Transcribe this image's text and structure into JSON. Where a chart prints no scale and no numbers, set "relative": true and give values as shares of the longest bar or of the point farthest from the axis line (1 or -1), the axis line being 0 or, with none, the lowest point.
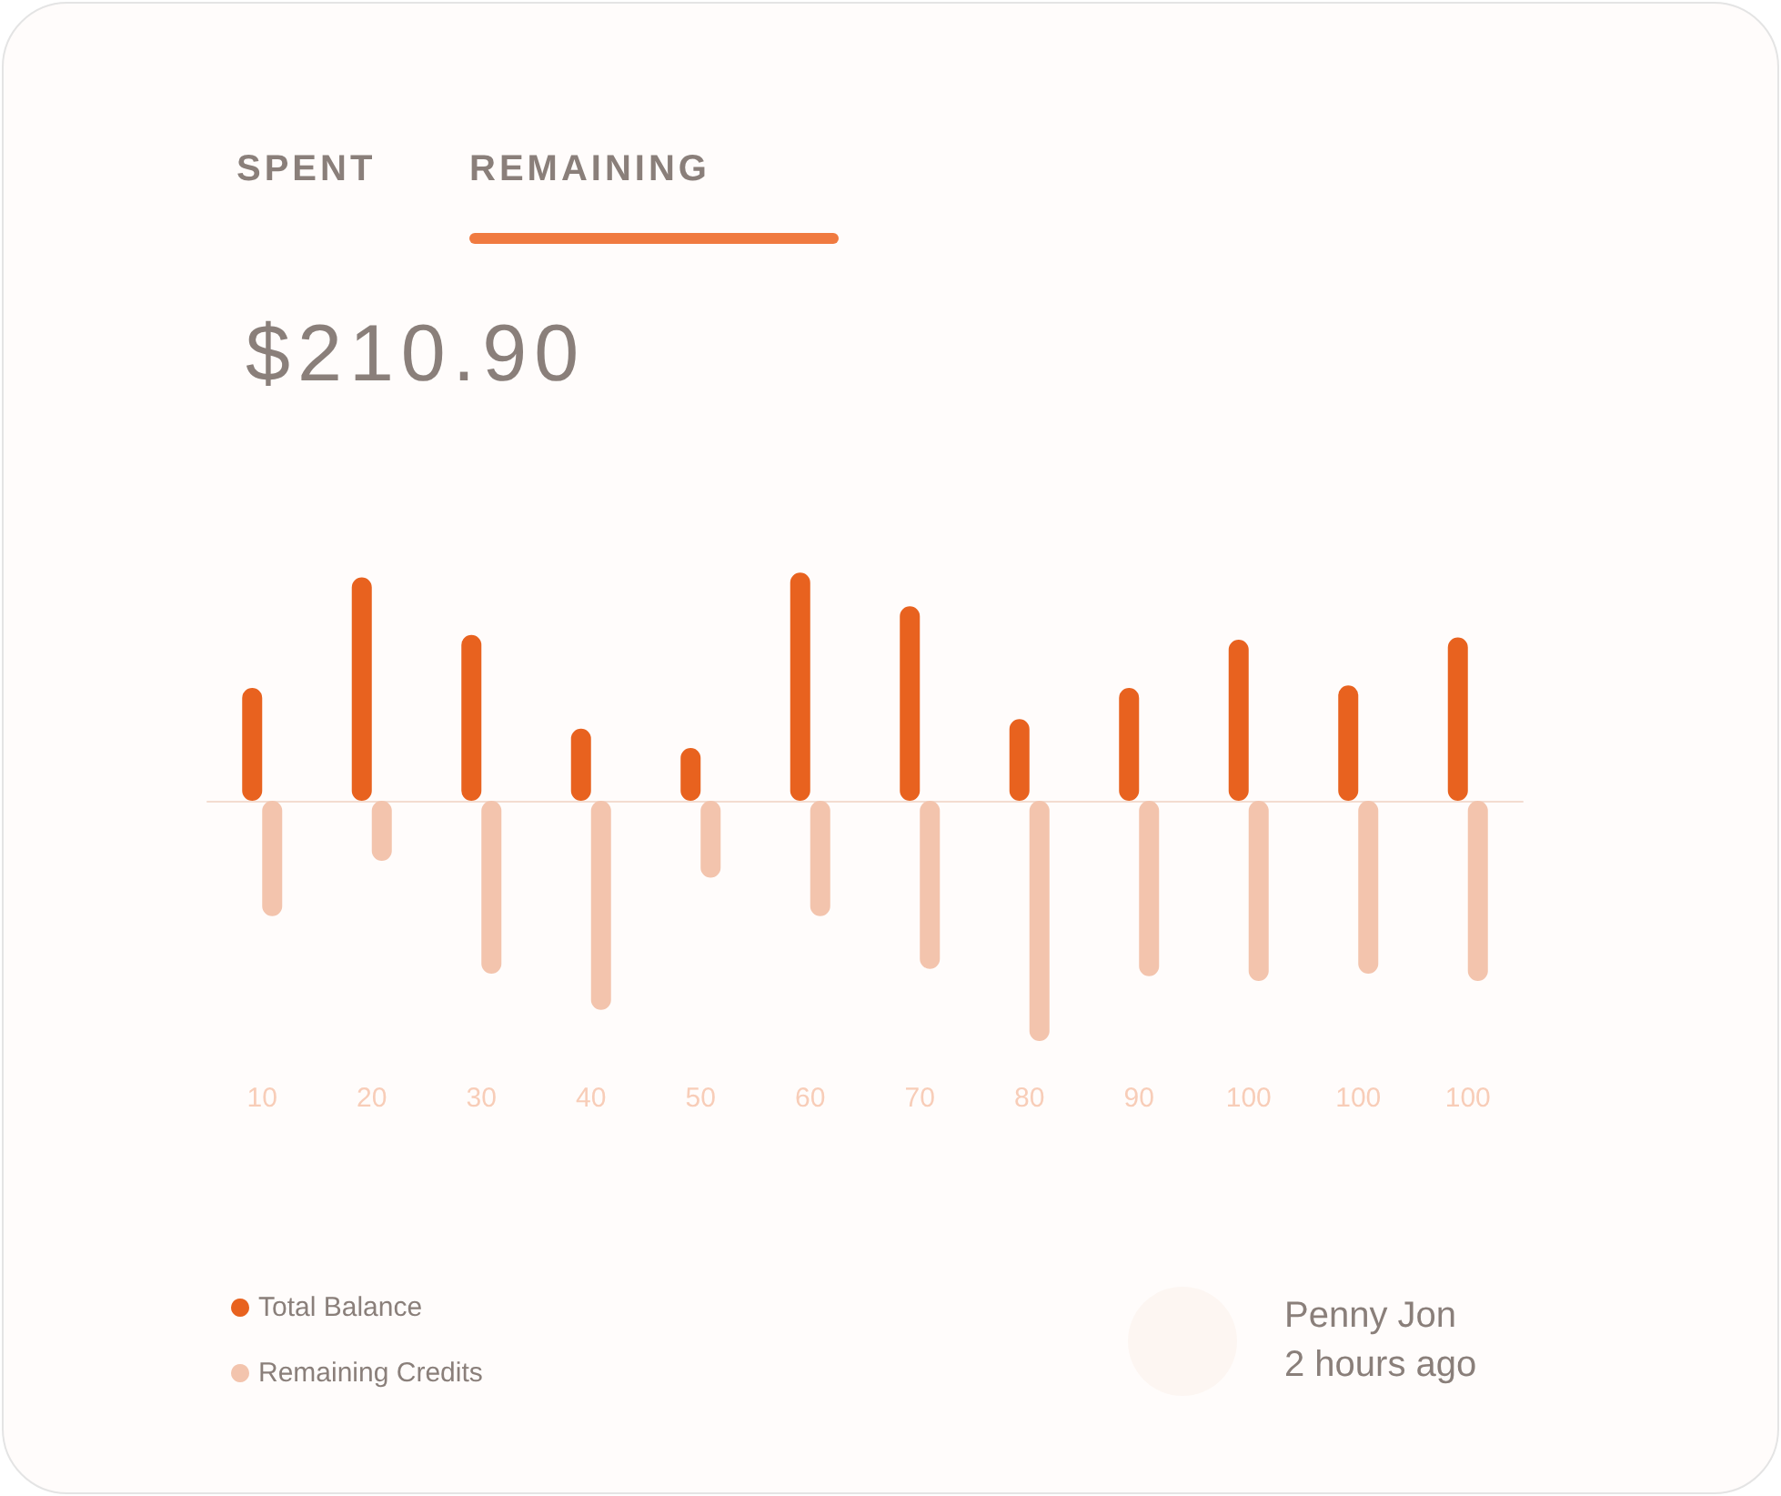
{
  "chart_data": {
    "type": "bar",
    "title": "$210.90",
    "relative": true,
    "categories": [
      "10",
      "20",
      "30",
      "40",
      "50",
      "60",
      "70",
      "80",
      "90",
      "100",
      "100",
      "100"
    ],
    "series": [
      {
        "name": "Total Balance",
        "color": "#e8621f",
        "values": [
          0.47,
          0.93,
          0.69,
          0.3,
          0.22,
          0.95,
          0.81,
          0.34,
          0.47,
          0.67,
          0.48,
          0.68
        ]
      },
      {
        "name": "Remaining Credits",
        "color": "#f3c4ad",
        "values": [
          -0.48,
          -0.25,
          -0.72,
          -0.87,
          -0.32,
          -0.48,
          -0.7,
          -1,
          -0.73,
          -0.75,
          -0.72,
          -0.75
        ]
      }
    ],
    "legend": "bottom left",
    "grid": false,
    "annotations": [
      "SPENT",
      "REMAINING",
      "Penny Jon",
      "2 hours ago"
    ]
  }
}
